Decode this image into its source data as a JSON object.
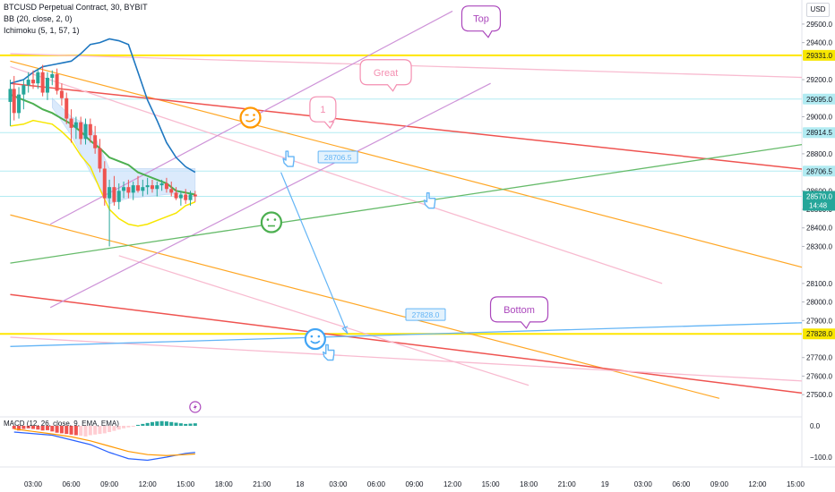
{
  "header": {
    "symbol_line": "BTCUSD Perpetual Contract, 30, BYBIT",
    "indicator_1": "BB (20, close, 2, 0)",
    "indicator_2": "Ichimoku (5, 1, 57, 1)",
    "macd_label": "MACD (12, 26, close, 9, EMA, EMA)",
    "currency": "USD"
  },
  "colors": {
    "bull": "#26a69a",
    "bear": "#ef5350",
    "bb_basis": "#1e77c0",
    "green_line": "#4caf50",
    "yellow_line": "#f7e600",
    "orange_line": "#ff9800",
    "red_line": "#e53935",
    "pink_line": "#f8bbd0",
    "purple_line": "#ba68c8",
    "blue_line": "#5b9cf5",
    "cloud": "#cfe3fb",
    "cyan_level": "#b2ebf2"
  },
  "chart_data": {
    "type": "candlestick",
    "price_axis": {
      "ticks": [
        29500,
        29400,
        29200,
        29000,
        28800,
        28600,
        28500,
        28400,
        28300,
        28100,
        28000,
        27900,
        27700,
        27600,
        27500
      ],
      "tick_labels": [
        "29500.0",
        "29400.0",
        "29200.0",
        "29000.0",
        "28800.0",
        "28600.0",
        "28500.0",
        "28400.0",
        "28300.0",
        "28100.0",
        "28000.0",
        "27900.0",
        "27700.0",
        "27600.0",
        "27500.0"
      ],
      "ylim": [
        27380,
        29630
      ]
    },
    "time_axis": {
      "labels": [
        "03:00",
        "06:00",
        "09:00",
        "12:00",
        "15:00",
        "18:00",
        "21:00",
        "18",
        "03:00",
        "06:00",
        "09:00",
        "12:00",
        "15:00",
        "18:00",
        "21:00",
        "19",
        "03:00",
        "06:00",
        "09:00",
        "12:00",
        "15:00"
      ],
      "positions": [
        1,
        3,
        5,
        7,
        9,
        11,
        13,
        15,
        17,
        19,
        21,
        23,
        25,
        27,
        29,
        31,
        33,
        35,
        37,
        39,
        41
      ]
    },
    "price_badges": [
      {
        "label": "29331.0",
        "value": 29331,
        "color": "#f7e600",
        "text_color": "#131722"
      },
      {
        "label": "29095.0",
        "value": 29095,
        "color": "#b2ebf2",
        "text_color": "#131722"
      },
      {
        "label": "28914.5",
        "value": 28914.5,
        "color": "#b2ebf2",
        "text_color": "#131722"
      },
      {
        "label": "28706.5",
        "value": 28706.5,
        "color": "#b2ebf2",
        "text_color": "#131722"
      },
      {
        "label": "28570.0",
        "label2": "14:48",
        "value": 28570,
        "color": "#26a69a",
        "text_color": "#ffffff"
      },
      {
        "label": "27828.0",
        "value": 27828,
        "color": "#f7e600",
        "text_color": "#131722"
      }
    ],
    "candles": [
      {
        "t": -0.2,
        "o": 29080,
        "h": 29200,
        "l": 28950,
        "c": 29150
      },
      {
        "t": 0.0,
        "o": 29150,
        "h": 29220,
        "l": 28980,
        "c": 29020
      },
      {
        "t": 0.25,
        "o": 29020,
        "h": 29160,
        "l": 28990,
        "c": 29120
      },
      {
        "t": 0.5,
        "o": 29120,
        "h": 29200,
        "l": 29040,
        "c": 29170
      },
      {
        "t": 0.75,
        "o": 29170,
        "h": 29240,
        "l": 29130,
        "c": 29200
      },
      {
        "t": 1.0,
        "o": 29200,
        "h": 29250,
        "l": 29150,
        "c": 29180
      },
      {
        "t": 1.25,
        "o": 29180,
        "h": 29260,
        "l": 29150,
        "c": 29240
      },
      {
        "t": 1.5,
        "o": 29240,
        "h": 29280,
        "l": 29110,
        "c": 29130
      },
      {
        "t": 1.75,
        "o": 29130,
        "h": 29240,
        "l": 29090,
        "c": 29210
      },
      {
        "t": 2.0,
        "o": 29210,
        "h": 29250,
        "l": 29170,
        "c": 29230
      },
      {
        "t": 2.25,
        "o": 29230,
        "h": 29260,
        "l": 29120,
        "c": 29140
      },
      {
        "t": 2.5,
        "o": 29140,
        "h": 29180,
        "l": 29060,
        "c": 29100
      },
      {
        "t": 2.75,
        "o": 29100,
        "h": 29130,
        "l": 28960,
        "c": 28990
      },
      {
        "t": 3.0,
        "o": 28990,
        "h": 29040,
        "l": 28860,
        "c": 28940
      },
      {
        "t": 3.25,
        "o": 28940,
        "h": 29000,
        "l": 28880,
        "c": 28970
      },
      {
        "t": 3.5,
        "o": 28970,
        "h": 29000,
        "l": 28850,
        "c": 28880
      },
      {
        "t": 3.75,
        "o": 28880,
        "h": 28990,
        "l": 28850,
        "c": 28960
      },
      {
        "t": 4.0,
        "o": 28960,
        "h": 28990,
        "l": 28860,
        "c": 28900
      },
      {
        "t": 4.25,
        "o": 28900,
        "h": 28950,
        "l": 28800,
        "c": 28830
      },
      {
        "t": 4.5,
        "o": 28830,
        "h": 28880,
        "l": 28700,
        "c": 28720
      },
      {
        "t": 4.75,
        "o": 28720,
        "h": 28760,
        "l": 28520,
        "c": 28560
      },
      {
        "t": 5.0,
        "o": 28560,
        "h": 28660,
        "l": 28300,
        "c": 28620
      },
      {
        "t": 5.25,
        "o": 28620,
        "h": 28680,
        "l": 28520,
        "c": 28540
      },
      {
        "t": 5.5,
        "o": 28540,
        "h": 28640,
        "l": 28500,
        "c": 28600
      },
      {
        "t": 5.75,
        "o": 28600,
        "h": 28650,
        "l": 28560,
        "c": 28620
      },
      {
        "t": 6.0,
        "o": 28620,
        "h": 28660,
        "l": 28560,
        "c": 28590
      },
      {
        "t": 6.25,
        "o": 28590,
        "h": 28650,
        "l": 28550,
        "c": 28630
      },
      {
        "t": 6.5,
        "o": 28630,
        "h": 28680,
        "l": 28590,
        "c": 28600
      },
      {
        "t": 6.75,
        "o": 28600,
        "h": 28660,
        "l": 28570,
        "c": 28620
      },
      {
        "t": 7.0,
        "o": 28620,
        "h": 28670,
        "l": 28580,
        "c": 28630
      },
      {
        "t": 7.25,
        "o": 28630,
        "h": 28660,
        "l": 28590,
        "c": 28610
      },
      {
        "t": 7.5,
        "o": 28610,
        "h": 28650,
        "l": 28570,
        "c": 28630
      },
      {
        "t": 7.75,
        "o": 28630,
        "h": 28660,
        "l": 28600,
        "c": 28640
      },
      {
        "t": 8.0,
        "o": 28640,
        "h": 28670,
        "l": 28590,
        "c": 28610
      },
      {
        "t": 8.25,
        "o": 28610,
        "h": 28650,
        "l": 28570,
        "c": 28590
      },
      {
        "t": 8.5,
        "o": 28590,
        "h": 28620,
        "l": 28550,
        "c": 28560
      },
      {
        "t": 8.75,
        "o": 28560,
        "h": 28600,
        "l": 28520,
        "c": 28580
      },
      {
        "t": 9.0,
        "o": 28580,
        "h": 28610,
        "l": 28530,
        "c": 28550
      },
      {
        "t": 9.25,
        "o": 28550,
        "h": 28600,
        "l": 28520,
        "c": 28580
      },
      {
        "t": 9.5,
        "o": 28580,
        "h": 28600,
        "l": 28540,
        "c": 28570
      }
    ],
    "bb_basis_series": [
      [
        -0.2,
        29180
      ],
      [
        0.5,
        29200
      ],
      [
        1.0,
        29240
      ],
      [
        1.5,
        29270
      ],
      [
        2.0,
        29280
      ],
      [
        2.5,
        29290
      ],
      [
        3.0,
        29300
      ],
      [
        3.5,
        29340
      ],
      [
        4.0,
        29390
      ],
      [
        4.5,
        29400
      ],
      [
        5.0,
        29420
      ],
      [
        5.5,
        29410
      ],
      [
        6.0,
        29390
      ],
      [
        6.5,
        29240
      ],
      [
        7.0,
        29090
      ],
      [
        7.5,
        28980
      ],
      [
        8.0,
        28860
      ],
      [
        8.5,
        28780
      ],
      [
        9.0,
        28730
      ],
      [
        9.5,
        28700
      ]
    ],
    "green_ma_series": [
      [
        -0.2,
        29120
      ],
      [
        0.5,
        29090
      ],
      [
        1.0,
        29070
      ],
      [
        1.5,
        29040
      ],
      [
        2.0,
        29020
      ],
      [
        2.5,
        28990
      ],
      [
        3.0,
        28960
      ],
      [
        3.5,
        28920
      ],
      [
        4.0,
        28870
      ],
      [
        4.5,
        28830
      ],
      [
        5.0,
        28780
      ],
      [
        5.5,
        28760
      ],
      [
        6.0,
        28740
      ],
      [
        6.5,
        28700
      ],
      [
        7.0,
        28680
      ],
      [
        7.5,
        28660
      ],
      [
        8.0,
        28640
      ],
      [
        8.5,
        28600
      ],
      [
        9.0,
        28590
      ],
      [
        9.5,
        28580
      ]
    ],
    "yellow_band_series": [
      [
        -0.2,
        28950
      ],
      [
        0.5,
        28960
      ],
      [
        1.0,
        28980
      ],
      [
        1.5,
        28970
      ],
      [
        2.0,
        28960
      ],
      [
        2.5,
        28920
      ],
      [
        3.0,
        28870
      ],
      [
        3.5,
        28790
      ],
      [
        4.0,
        28730
      ],
      [
        4.5,
        28610
      ],
      [
        5.0,
        28500
      ],
      [
        5.5,
        28450
      ],
      [
        6.0,
        28420
      ],
      [
        6.5,
        28410
      ],
      [
        7.0,
        28420
      ],
      [
        7.5,
        28440
      ],
      [
        8.0,
        28460
      ],
      [
        8.5,
        28480
      ],
      [
        9.0,
        28520
      ],
      [
        9.5,
        28540
      ]
    ],
    "cloud_series": [
      [
        2.0,
        29100,
        29050
      ],
      [
        3.0,
        29000,
        28900
      ],
      [
        4.0,
        28950,
        28700
      ],
      [
        5.0,
        28720,
        28530
      ],
      [
        6.0,
        28720,
        28560
      ],
      [
        7.0,
        28720,
        28570
      ],
      [
        8.0,
        28720,
        28580
      ],
      [
        9.5,
        28720,
        28590
      ]
    ],
    "trend_lines": [
      {
        "color": "#ffa726",
        "width": 1.2,
        "p1": [
          -0.2,
          29300
        ],
        "p2": [
          42,
          28170
        ]
      },
      {
        "color": "#ffa726",
        "width": 1.2,
        "p1": [
          -0.2,
          28470
        ],
        "p2": [
          37,
          27480
        ]
      },
      {
        "color": "#ef5350",
        "width": 1.5,
        "p1": [
          -0.2,
          29180
        ],
        "p2": [
          42,
          28710
        ]
      },
      {
        "color": "#ef5350",
        "width": 1.5,
        "p1": [
          -0.2,
          28040
        ],
        "p2": [
          42,
          27500
        ]
      },
      {
        "color": "#f8bbd0",
        "width": 1.3,
        "p1": [
          -0.2,
          29340
        ],
        "p2": [
          42,
          29210
        ]
      },
      {
        "color": "#f8bbd0",
        "width": 1.3,
        "p1": [
          -0.2,
          29270
        ],
        "p2": [
          34,
          28100
        ]
      },
      {
        "color": "#f8bbd0",
        "width": 1.3,
        "p1": [
          -0.2,
          27810
        ],
        "p2": [
          42,
          27570
        ]
      },
      {
        "color": "#f8bbd0",
        "width": 1.3,
        "p1": [
          5.5,
          28250
        ],
        "p2": [
          27,
          27550
        ]
      },
      {
        "color": "#ce93d8",
        "width": 1.2,
        "p1": [
          1.9,
          28420
        ],
        "p2": [
          23,
          29570
        ]
      },
      {
        "color": "#ce93d8",
        "width": 1.2,
        "p1": [
          1.9,
          27970
        ],
        "p2": [
          25,
          29180
        ]
      },
      {
        "color": "#66bb6a",
        "width": 1.3,
        "p1": [
          -0.2,
          28210
        ],
        "p2": [
          42,
          28860
        ]
      },
      {
        "color": "#64b5f6",
        "width": 1.3,
        "p1": [
          -0.2,
          27760
        ],
        "p2": [
          42,
          27890
        ]
      }
    ],
    "level_lines": [
      {
        "value": 29331,
        "color": "#ffe600",
        "width": 2
      },
      {
        "value": 29095,
        "color": "#b2ebf2",
        "width": 1
      },
      {
        "value": 28914.5,
        "color": "#b2ebf2",
        "width": 1
      },
      {
        "value": 28706.5,
        "color": "#b2ebf2",
        "width": 1
      },
      {
        "value": 28570,
        "color": "#b2ebf2",
        "width": 1
      },
      {
        "value": 27828,
        "color": "#ffe600",
        "width": 2
      }
    ],
    "arrow": {
      "p1": [
        14.0,
        28700
      ],
      "p2": [
        17.5,
        27830
      ],
      "color": "#64b5f6"
    },
    "callouts": [
      {
        "text": "Top",
        "t": 24.5,
        "v": 29530,
        "color": "#ab47bc"
      },
      {
        "text": "Great",
        "t": 19.5,
        "v": 29240,
        "color": "#f48fb1"
      },
      {
        "text": "1",
        "t": 16.2,
        "v": 29040,
        "color": "#f48fb1"
      },
      {
        "text": "Bottom",
        "t": 26.5,
        "v": 27960,
        "color": "#ab47bc"
      }
    ],
    "price_tags": [
      {
        "text": "28706.5",
        "t": 16.0,
        "v": 28780,
        "color": "#64b5f6"
      },
      {
        "text": "27828.0",
        "t": 20.6,
        "v": 27930,
        "color": "#64b5f6"
      }
    ],
    "emojis": [
      {
        "kind": "wink",
        "t": 12.4,
        "v": 28995,
        "color": "#ff9800"
      },
      {
        "kind": "neutral",
        "t": 13.5,
        "v": 28430,
        "color": "#4caf50"
      },
      {
        "kind": "happy",
        "t": 15.8,
        "v": 27800,
        "color": "#42a5f5"
      }
    ],
    "hands": [
      {
        "t": 14.4,
        "v": 28775,
        "color": "#64b5f6"
      },
      {
        "t": 21.8,
        "v": 28550,
        "color": "#64b5f6"
      },
      {
        "t": 16.5,
        "v": 27730,
        "color": "#64b5f6"
      }
    ],
    "macd": {
      "axis_labels": [
        "0.0",
        "−100.0"
      ],
      "axis_values": [
        0,
        -100
      ],
      "hist": [
        -10,
        -15,
        -10,
        -8,
        -10,
        -12,
        -15,
        -14,
        -18,
        -22,
        -24,
        -26,
        -28,
        -30,
        -32,
        -34,
        -30,
        -28,
        -26,
        -24,
        -20,
        -16,
        -12,
        -8,
        -5,
        -2,
        3,
        6,
        9,
        12,
        14,
        15,
        14,
        12,
        10,
        8,
        6,
        7,
        8
      ],
      "hist_start": 0.0,
      "hist_step": 0.25,
      "macd_line": [
        [
          0,
          -20
        ],
        [
          1,
          -25
        ],
        [
          2,
          -30
        ],
        [
          3,
          -45
        ],
        [
          4,
          -60
        ],
        [
          5,
          -85
        ],
        [
          6,
          -105
        ],
        [
          7,
          -110
        ],
        [
          8,
          -100
        ],
        [
          9,
          -88
        ],
        [
          9.5,
          -85
        ]
      ],
      "signal_line": [
        [
          0,
          -10
        ],
        [
          1,
          -18
        ],
        [
          2,
          -26
        ],
        [
          3,
          -35
        ],
        [
          4,
          -48
        ],
        [
          5,
          -65
        ],
        [
          6,
          -82
        ],
        [
          7,
          -92
        ],
        [
          8,
          -95
        ],
        [
          9,
          -92
        ],
        [
          9.5,
          -90
        ]
      ]
    },
    "lightning_icon": {
      "t": 9.5,
      "color": "#ab47bc"
    }
  }
}
